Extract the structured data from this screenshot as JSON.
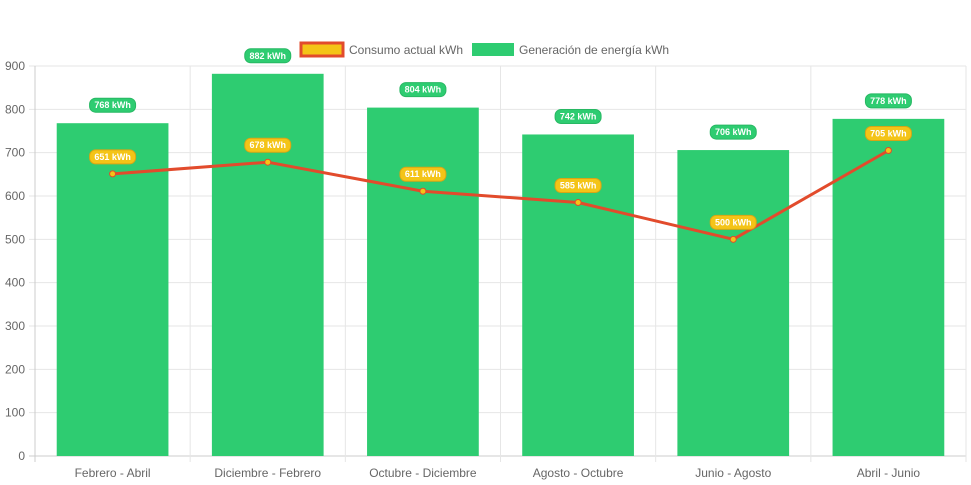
{
  "chart_data": {
    "type": "bar",
    "categories": [
      "Febrero - Abril",
      "Diciembre - Febrero",
      "Octubre - Diciembre",
      "Agosto - Octubre",
      "Junio - Agosto",
      "Abril - Junio"
    ],
    "series": [
      {
        "name": "Consumo actual kWh",
        "type": "line",
        "values": [
          651,
          678,
          611,
          585,
          500,
          705
        ],
        "labels": [
          "651 kWh",
          "678 kWh",
          "611 kWh",
          "585 kWh",
          "500 kWh",
          "705 kWh"
        ],
        "color": "#e24b2c",
        "fill": "#f4c417"
      },
      {
        "name": "Generación de energía kWh",
        "type": "bar",
        "values": [
          768,
          882,
          804,
          742,
          706,
          778
        ],
        "labels": [
          "768 kWh",
          "882 kWh",
          "804 kWh",
          "742 kWh",
          "706 kWh",
          "778 kWh"
        ],
        "color": "#2ecc71"
      }
    ],
    "ylim": [
      0,
      900
    ],
    "yticks": [
      0,
      100,
      200,
      300,
      400,
      500,
      600,
      700,
      800,
      900
    ],
    "ytick_labels": [
      "0",
      "100",
      "200",
      "300",
      "400",
      "500",
      "600",
      "700",
      "800",
      "900"
    ],
    "grid": true,
    "legend": "top-center",
    "title": "",
    "xlabel": "",
    "ylabel": ""
  }
}
